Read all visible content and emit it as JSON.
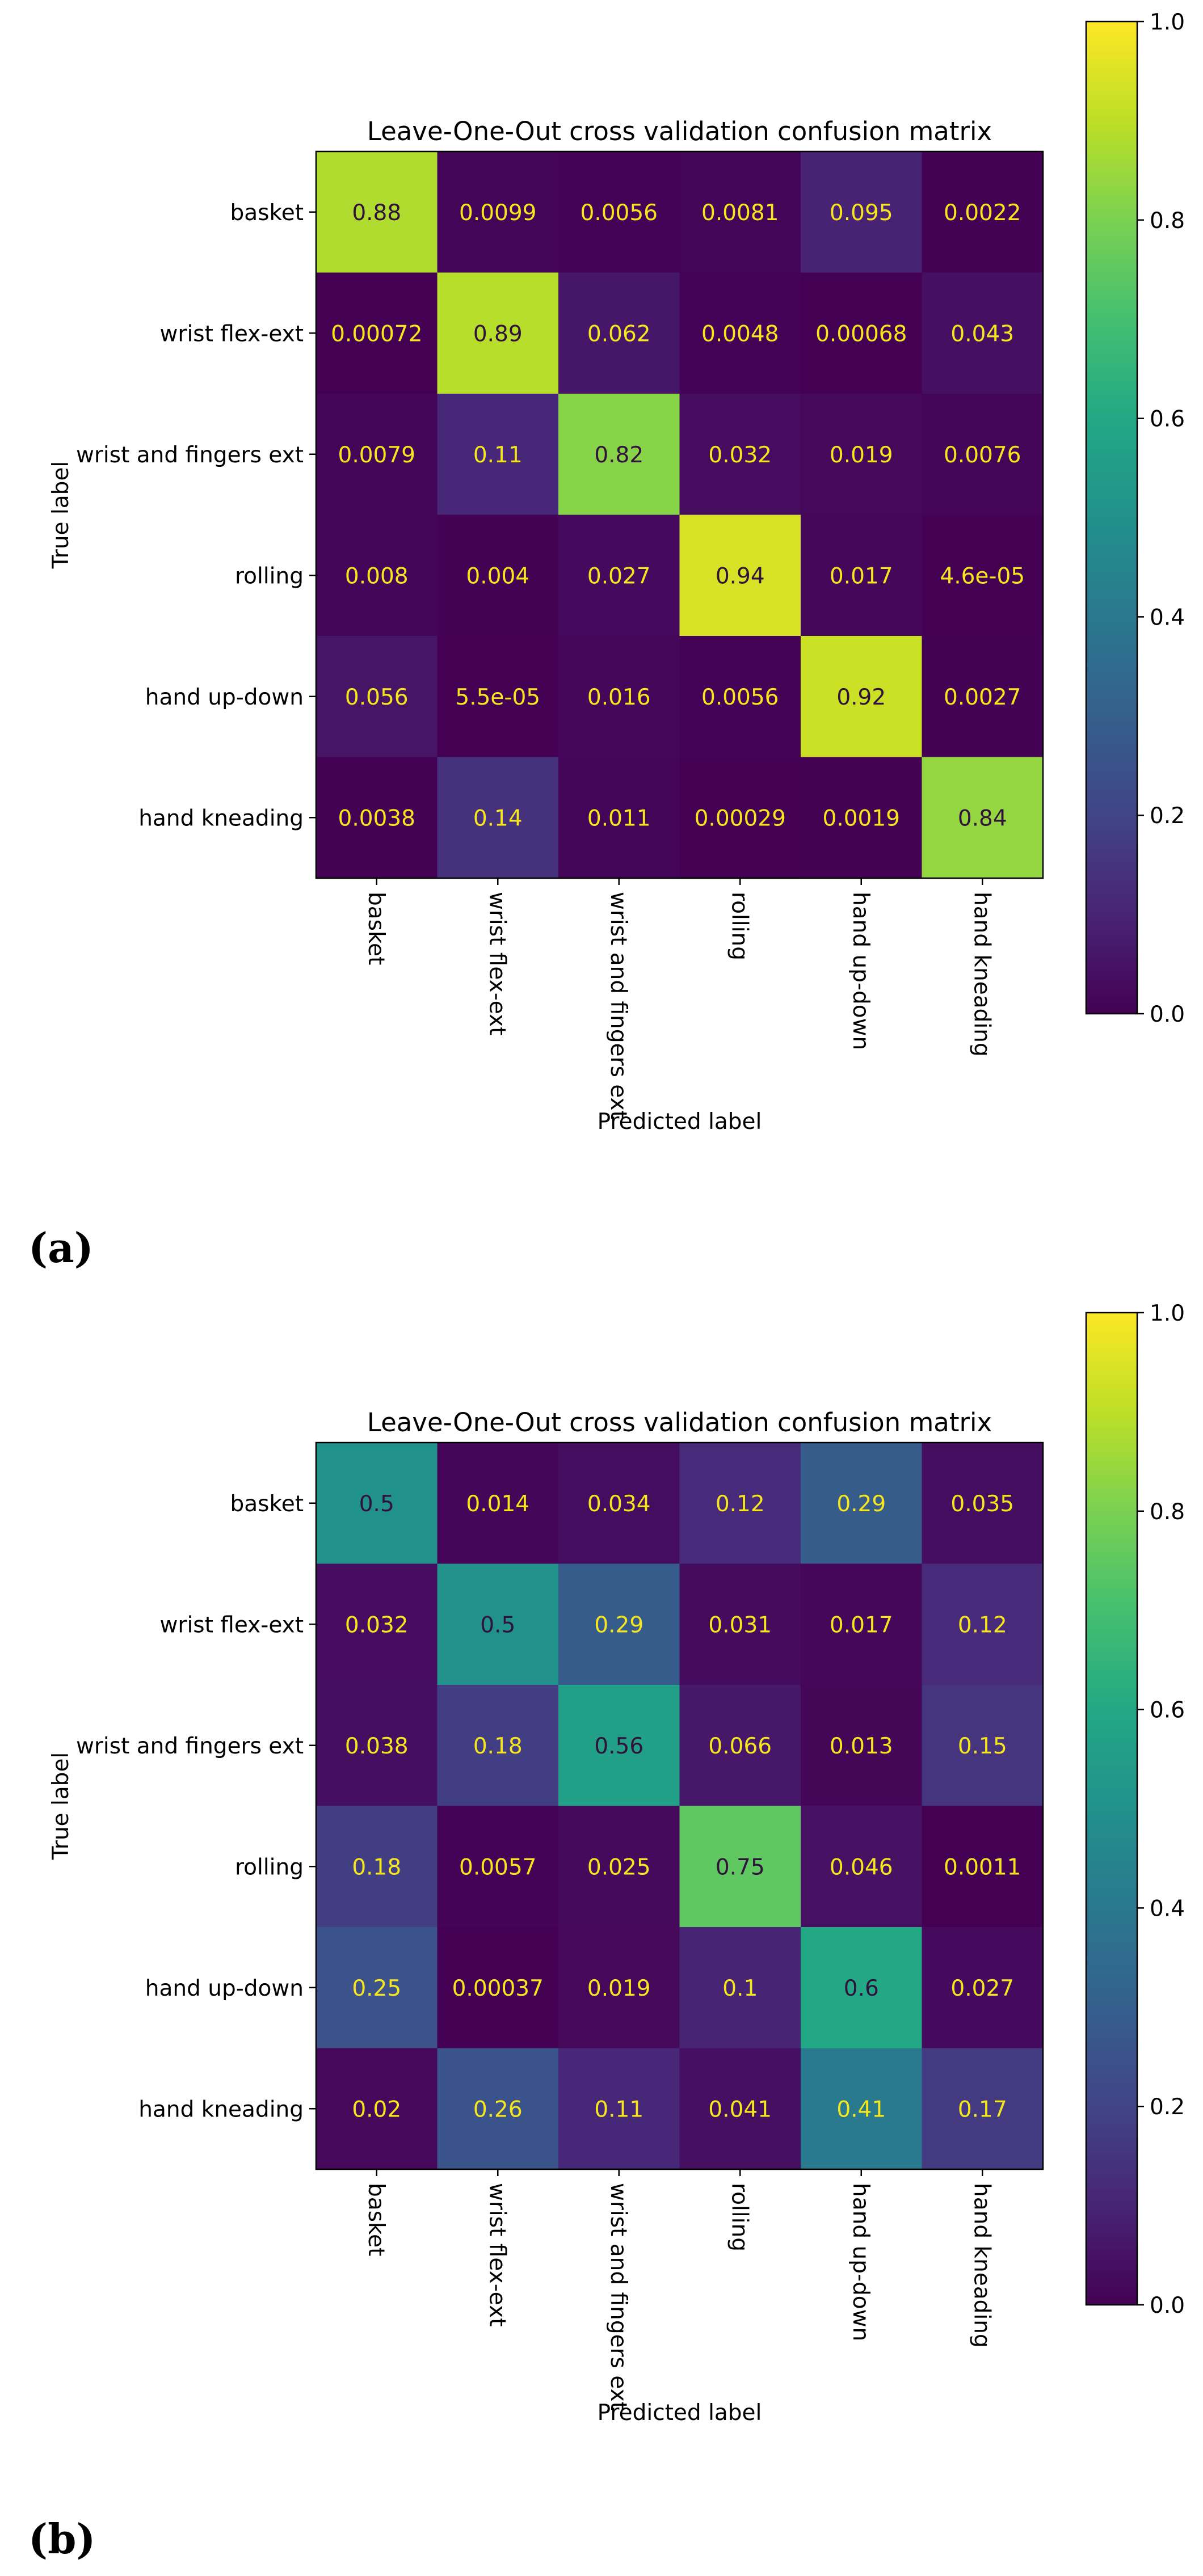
{
  "panel_labels": [
    "(a)",
    "(b)"
  ],
  "chart_data": [
    {
      "type": "heatmap",
      "panel": "(a)",
      "title": "Leave-One-Out cross validation confusion matrix",
      "xlabel": "Predicted label",
      "ylabel": "True label",
      "categories": [
        "basket",
        "wrist flex-ext",
        "wrist and fingers ext",
        "rolling",
        "hand up-down",
        "hand kneading"
      ],
      "values": [
        [
          0.88,
          0.0099,
          0.0056,
          0.0081,
          0.095,
          0.0022
        ],
        [
          0.00072,
          0.89,
          0.062,
          0.0048,
          0.00068,
          0.043
        ],
        [
          0.0079,
          0.11,
          0.82,
          0.032,
          0.019,
          0.0076
        ],
        [
          0.008,
          0.004,
          0.027,
          0.94,
          0.017,
          4.6e-05
        ],
        [
          0.056,
          5.5e-05,
          0.016,
          0.0056,
          0.92,
          0.0027
        ],
        [
          0.0038,
          0.14,
          0.011,
          0.00029,
          0.0019,
          0.84
        ]
      ],
      "cell_labels": [
        [
          "0.88",
          "0.0099",
          "0.0056",
          "0.0081",
          "0.095",
          "0.0022"
        ],
        [
          "0.00072",
          "0.89",
          "0.062",
          "0.0048",
          "0.00068",
          "0.043"
        ],
        [
          "0.0079",
          "0.11",
          "0.82",
          "0.032",
          "0.019",
          "0.0076"
        ],
        [
          "0.008",
          "0.004",
          "0.027",
          "0.94",
          "0.017",
          "4.6e-05"
        ],
        [
          "0.056",
          "5.5e-05",
          "0.016",
          "0.0056",
          "0.92",
          "0.0027"
        ],
        [
          "0.0038",
          "0.14",
          "0.011",
          "0.00029",
          "0.0019",
          "0.84"
        ]
      ],
      "colorbar": {
        "colormap": "viridis",
        "range": [
          0,
          1
        ],
        "ticks": [
          "0.0",
          "0.2",
          "0.4",
          "0.6",
          "0.8",
          "1.0"
        ]
      }
    },
    {
      "type": "heatmap",
      "panel": "(b)",
      "title": "Leave-One-Out cross validation confusion matrix",
      "xlabel": "Predicted label",
      "ylabel": "True label",
      "categories": [
        "basket",
        "wrist flex-ext",
        "wrist and fingers ext",
        "rolling",
        "hand up-down",
        "hand kneading"
      ],
      "values": [
        [
          0.5,
          0.014,
          0.034,
          0.12,
          0.29,
          0.035
        ],
        [
          0.032,
          0.5,
          0.29,
          0.031,
          0.017,
          0.12
        ],
        [
          0.038,
          0.18,
          0.56,
          0.066,
          0.013,
          0.15
        ],
        [
          0.18,
          0.0057,
          0.025,
          0.75,
          0.046,
          0.0011
        ],
        [
          0.25,
          0.00037,
          0.019,
          0.1,
          0.6,
          0.027
        ],
        [
          0.02,
          0.26,
          0.11,
          0.041,
          0.41,
          0.17
        ]
      ],
      "cell_labels": [
        [
          "0.5",
          "0.014",
          "0.034",
          "0.12",
          "0.29",
          "0.035"
        ],
        [
          "0.032",
          "0.5",
          "0.29",
          "0.031",
          "0.017",
          "0.12"
        ],
        [
          "0.038",
          "0.18",
          "0.56",
          "0.066",
          "0.013",
          "0.15"
        ],
        [
          "0.18",
          "0.0057",
          "0.025",
          "0.75",
          "0.046",
          "0.0011"
        ],
        [
          "0.25",
          "0.00037",
          "0.019",
          "0.1",
          "0.6",
          "0.027"
        ],
        [
          "0.02",
          "0.26",
          "0.11",
          "0.041",
          "0.41",
          "0.17"
        ]
      ],
      "colorbar": {
        "colormap": "viridis",
        "range": [
          0,
          1
        ],
        "ticks": [
          "0.0",
          "0.2",
          "0.4",
          "0.6",
          "0.8",
          "1.0"
        ]
      }
    }
  ]
}
